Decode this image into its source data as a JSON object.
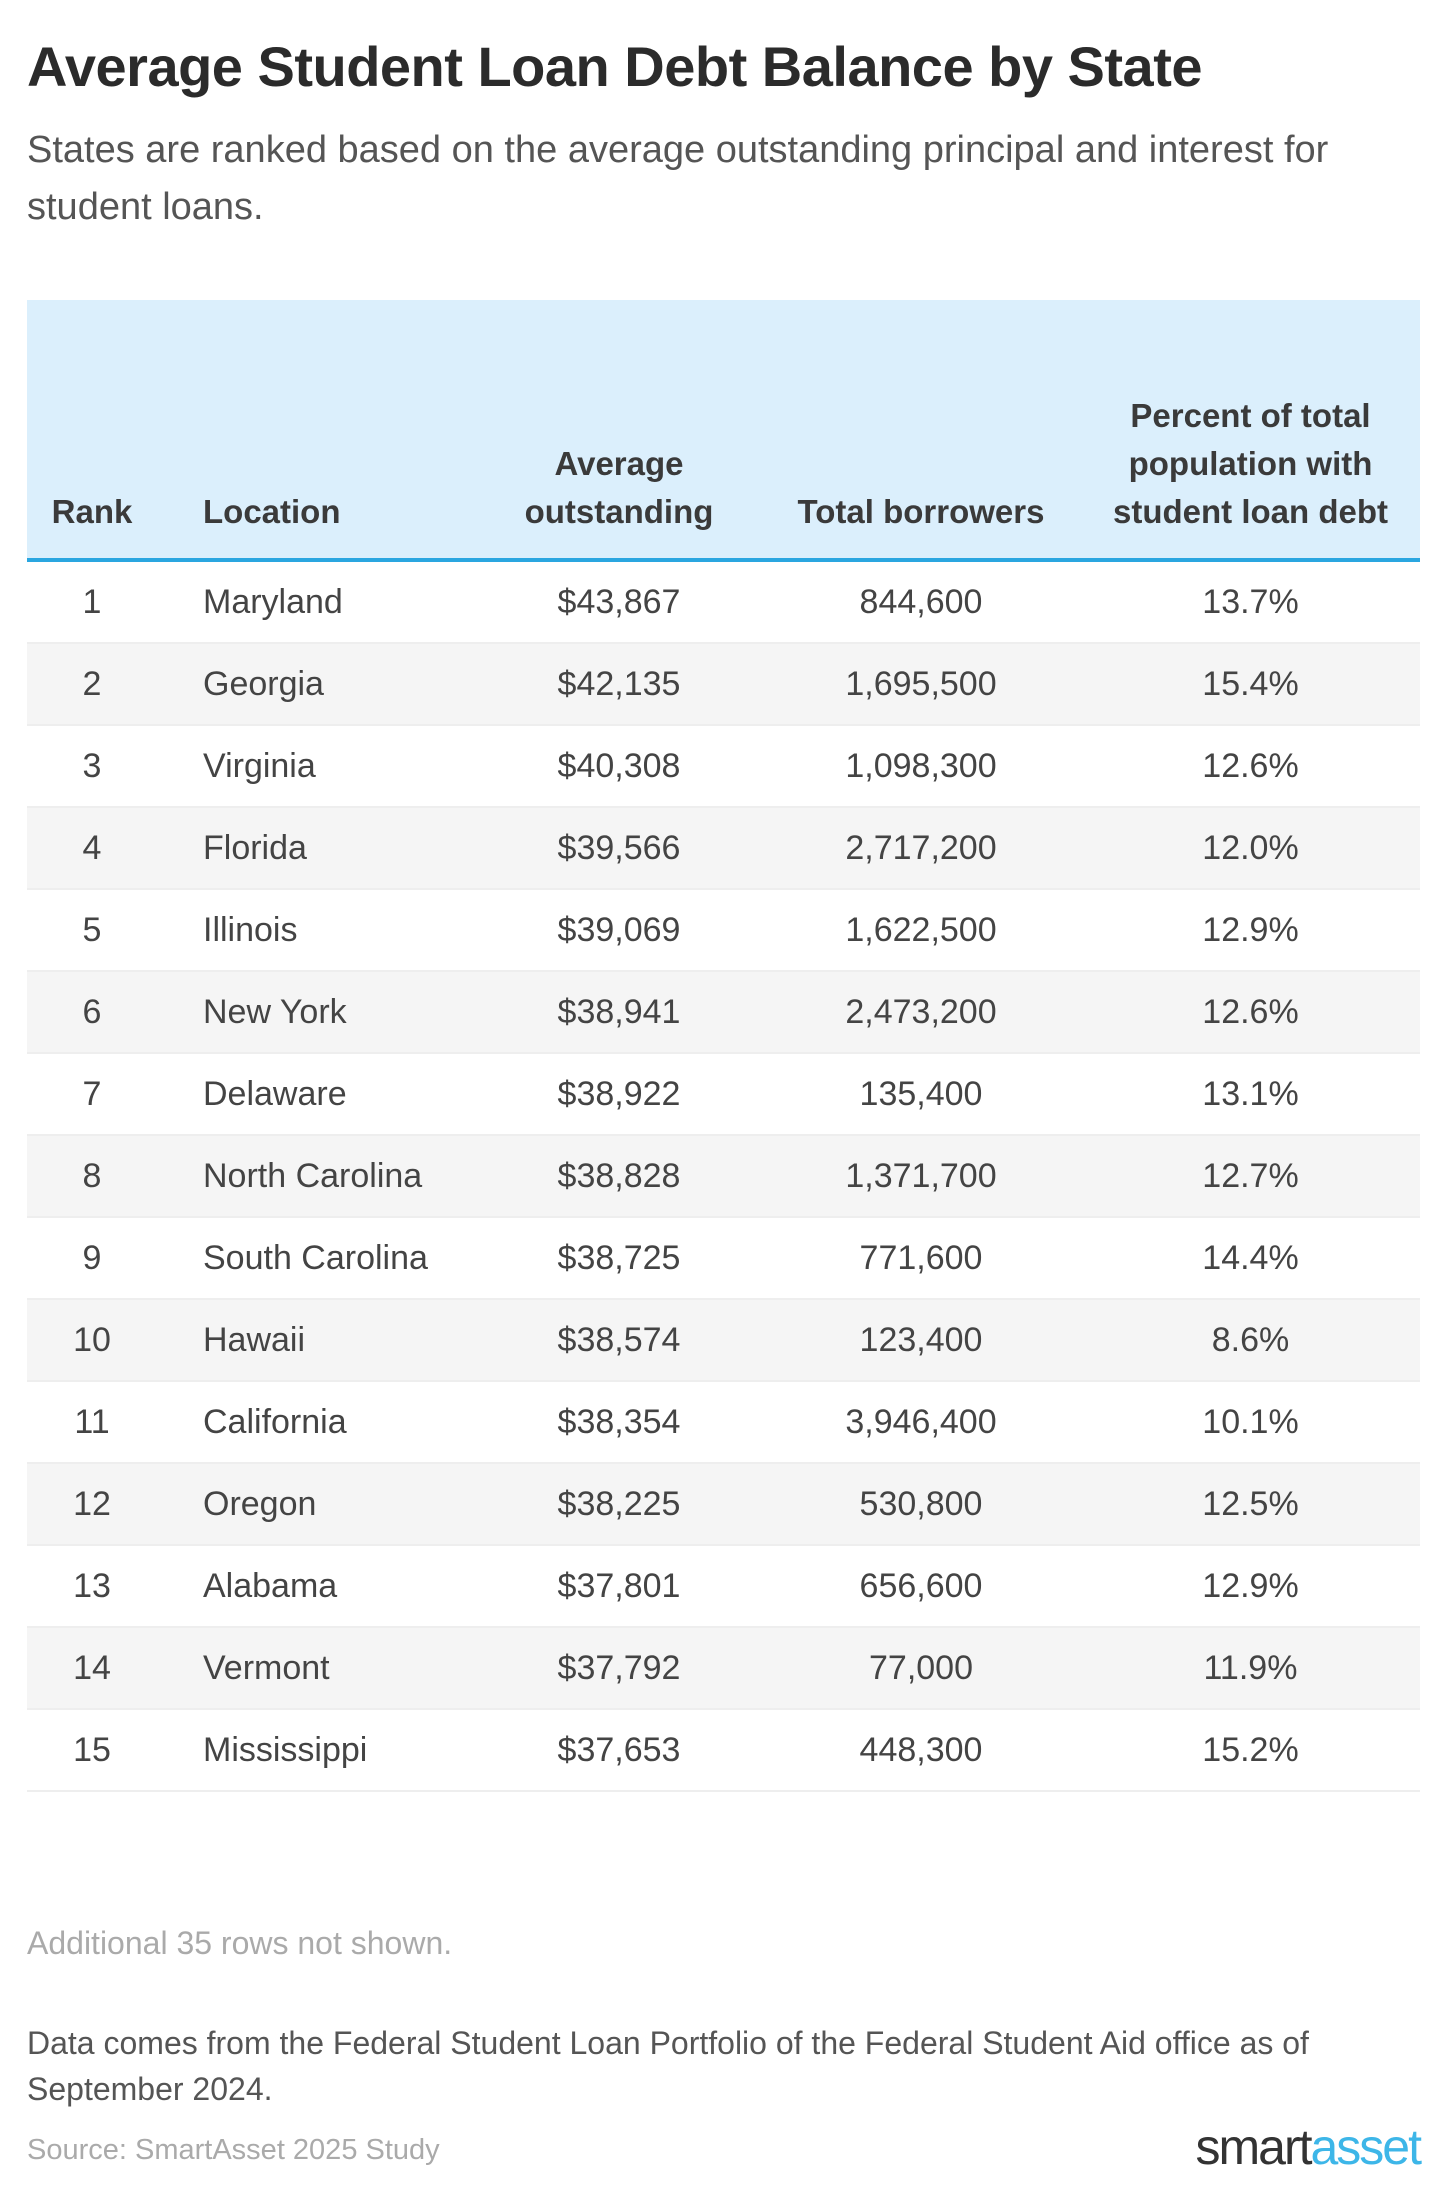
{
  "title": "Average Student Loan Debt Balance by State",
  "subtitle": "States are ranked based on the average outstanding principal and interest for student loans.",
  "table": {
    "headers": {
      "rank": "Rank",
      "location": "Location",
      "average": "Average outstanding",
      "borrowers": "Total borrowers",
      "percent": "Percent of total population with student loan debt"
    },
    "rows": [
      {
        "rank": "1",
        "location": "Maryland",
        "average": "$43,867",
        "borrowers": "844,600",
        "percent": "13.7%"
      },
      {
        "rank": "2",
        "location": "Georgia",
        "average": "$42,135",
        "borrowers": "1,695,500",
        "percent": "15.4%"
      },
      {
        "rank": "3",
        "location": "Virginia",
        "average": "$40,308",
        "borrowers": "1,098,300",
        "percent": "12.6%"
      },
      {
        "rank": "4",
        "location": "Florida",
        "average": "$39,566",
        "borrowers": "2,717,200",
        "percent": "12.0%"
      },
      {
        "rank": "5",
        "location": "Illinois",
        "average": "$39,069",
        "borrowers": "1,622,500",
        "percent": "12.9%"
      },
      {
        "rank": "6",
        "location": "New York",
        "average": "$38,941",
        "borrowers": "2,473,200",
        "percent": "12.6%"
      },
      {
        "rank": "7",
        "location": "Delaware",
        "average": "$38,922",
        "borrowers": "135,400",
        "percent": "13.1%"
      },
      {
        "rank": "8",
        "location": "North Carolina",
        "average": "$38,828",
        "borrowers": "1,371,700",
        "percent": "12.7%"
      },
      {
        "rank": "9",
        "location": "South Carolina",
        "average": "$38,725",
        "borrowers": "771,600",
        "percent": "14.4%"
      },
      {
        "rank": "10",
        "location": "Hawaii",
        "average": "$38,574",
        "borrowers": "123,400",
        "percent": "8.6%"
      },
      {
        "rank": "11",
        "location": "California",
        "average": "$38,354",
        "borrowers": "3,946,400",
        "percent": "10.1%"
      },
      {
        "rank": "12",
        "location": "Oregon",
        "average": "$38,225",
        "borrowers": "530,800",
        "percent": "12.5%"
      },
      {
        "rank": "13",
        "location": "Alabama",
        "average": "$37,801",
        "borrowers": "656,600",
        "percent": "12.9%"
      },
      {
        "rank": "14",
        "location": "Vermont",
        "average": "$37,792",
        "borrowers": "77,000",
        "percent": "11.9%"
      },
      {
        "rank": "15",
        "location": "Mississippi",
        "average": "$37,653",
        "borrowers": "448,300",
        "percent": "15.2%"
      }
    ]
  },
  "rows_note": "Additional 35 rows not shown.",
  "data_note": "Data comes from the Federal Student Loan Portfolio of the Federal Student Aid office as of September 2024.",
  "source": "Source: SmartAsset 2025 Study",
  "logo": {
    "part1": "smart",
    "part2": "asset"
  },
  "colors": {
    "header_bg": "#dbeffc",
    "header_rule": "#2aa6e0",
    "logo_accent": "#3db6e8"
  }
}
